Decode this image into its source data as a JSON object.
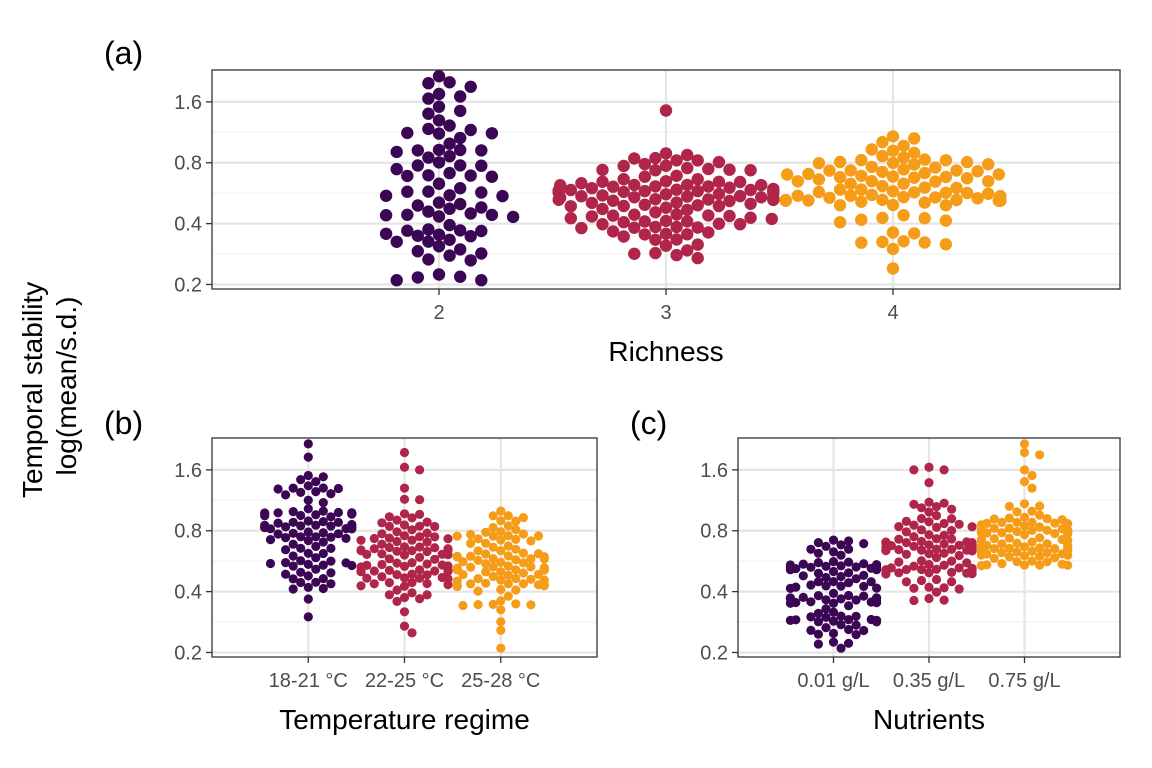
{
  "figure": {
    "y_axis_title": [
      "Temporal stability",
      "log(mean/s.d.)"
    ]
  },
  "colors": {
    "level_1": "#3b0654",
    "level_2": "#b0254a",
    "level_3": "#f59c19",
    "grid_major": "#e5e5e5",
    "grid_minor": "#f1f1f1",
    "panel_border": "#333333",
    "tick_text": "#4d4d4d"
  },
  "chart_data": [
    {
      "id": "a",
      "tag": "(a)",
      "type": "scatter",
      "subtype": "beeswarm",
      "xlabel": "Richness",
      "ylabel": "Temporal stability log(mean/s.d.)",
      "categories": [
        "2",
        "3",
        "4"
      ],
      "x_range": [
        1,
        5
      ],
      "y_scale": "log",
      "ylim": [
        0.19,
        2.3
      ],
      "yticks": [
        0.2,
        0.4,
        0.8,
        1.6
      ],
      "grid": true,
      "series": [
        {
          "category": "2",
          "n": 80,
          "median": 0.56,
          "spread": 0.55,
          "min": 0.21,
          "max": 2.15,
          "outliers": [
            0.21,
            0.21,
            2.15,
            2.0,
            1.9,
            1.75,
            1.7
          ]
        },
        {
          "category": "3",
          "n": 110,
          "median": 0.52,
          "spread": 0.28,
          "min": 0.27,
          "max": 1.45,
          "outliers": [
            1.45,
            0.27
          ]
        },
        {
          "category": "4",
          "n": 90,
          "median": 0.6,
          "spread": 0.3,
          "min": 0.24,
          "max": 1.1,
          "outliers": [
            0.24,
            0.3,
            1.08
          ]
        }
      ]
    },
    {
      "id": "b",
      "tag": "(b)",
      "type": "scatter",
      "subtype": "beeswarm",
      "xlabel": "Temperature regime",
      "ylabel": "Temporal stability log(mean/s.d.)",
      "categories": [
        "18-21 °C",
        "22-25 °C",
        "25-28 °C"
      ],
      "x_range": [
        0,
        4
      ],
      "y_scale": "log",
      "ylim": [
        0.19,
        2.3
      ],
      "yticks": [
        0.2,
        0.4,
        0.8,
        1.6
      ],
      "grid": true,
      "series": [
        {
          "category": "18-21 °C",
          "n": 95,
          "median": 0.74,
          "spread": 0.28,
          "min": 0.3,
          "max": 2.15,
          "outliers": [
            2.15,
            1.85,
            1.5,
            1.4,
            1.25,
            0.3
          ]
        },
        {
          "category": "22-25 °C",
          "n": 95,
          "median": 0.58,
          "spread": 0.3,
          "min": 0.25,
          "max": 1.95,
          "outliers": [
            1.95,
            1.65,
            1.6,
            1.3,
            0.25,
            0.27
          ]
        },
        {
          "category": "25-28 °C",
          "n": 95,
          "median": 0.55,
          "spread": 0.3,
          "min": 0.21,
          "max": 1.0,
          "outliers": [
            0.21,
            1.0,
            0.95
          ]
        }
      ]
    },
    {
      "id": "c",
      "tag": "(c)",
      "type": "scatter",
      "subtype": "beeswarm",
      "xlabel": "Nutrients",
      "ylabel": "Temporal stability log(mean/s.d.)",
      "categories": [
        "0.01 g/L",
        "0.35 g/L",
        "0.75 g/L"
      ],
      "x_range": [
        0,
        4
      ],
      "y_scale": "log",
      "ylim": [
        0.19,
        2.3
      ],
      "yticks": [
        0.2,
        0.4,
        0.8,
        1.6
      ],
      "grid": true,
      "series": [
        {
          "category": "0.01 g/L",
          "n": 95,
          "median": 0.4,
          "spread": 0.32,
          "min": 0.21,
          "max": 0.76,
          "outliers": [
            0.21,
            0.22
          ]
        },
        {
          "category": "0.35 g/L",
          "n": 95,
          "median": 0.6,
          "spread": 0.26,
          "min": 0.35,
          "max": 1.65,
          "outliers": [
            1.65,
            1.6,
            1.6
          ]
        },
        {
          "category": "0.75 g/L",
          "n": 95,
          "median": 0.7,
          "spread": 0.2,
          "min": 0.52,
          "max": 2.15,
          "outliers": [
            2.15,
            1.95,
            1.9,
            1.6,
            1.5,
            1.4,
            1.3
          ]
        }
      ]
    }
  ]
}
